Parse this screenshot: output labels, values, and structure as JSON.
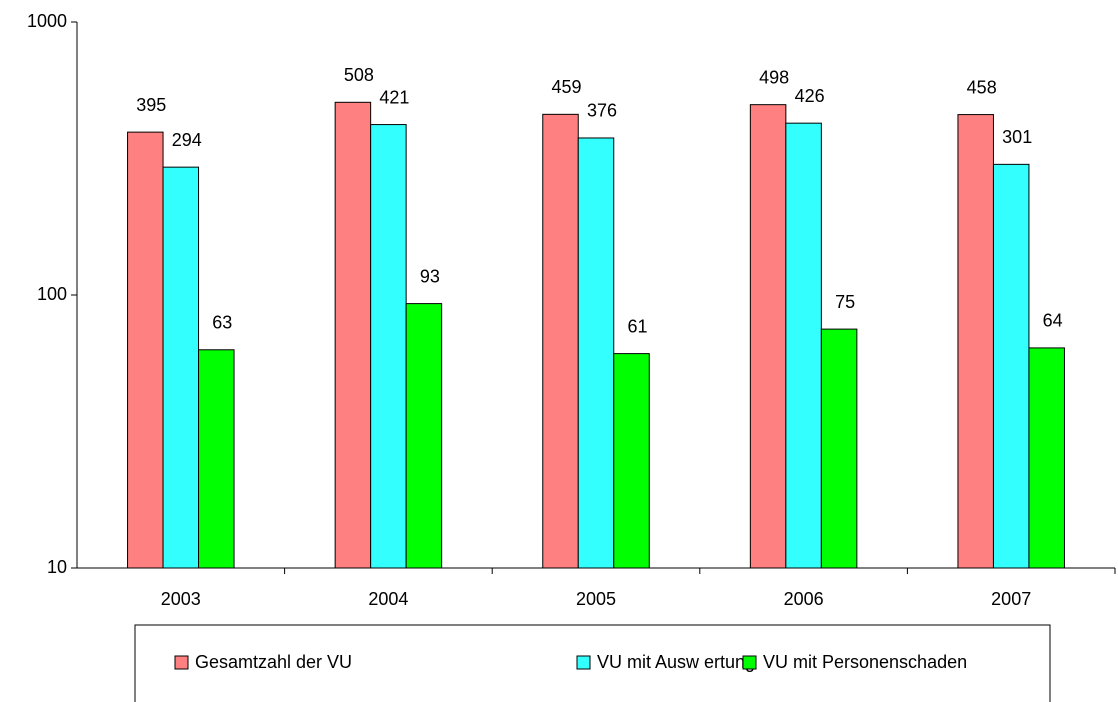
{
  "chart_data": {
    "type": "bar",
    "categories": [
      "2003",
      "2004",
      "2005",
      "2006",
      "2007"
    ],
    "series": [
      {
        "name": "Gesamtzahl der VU",
        "color": "#ff8080",
        "values": [
          395,
          508,
          459,
          498,
          458
        ]
      },
      {
        "name": "VU mit Ausw ertung",
        "color": "#33ffff",
        "values": [
          294,
          421,
          376,
          426,
          301
        ]
      },
      {
        "name": "VU mit Personenschaden",
        "color": "#00ff00",
        "values": [
          63,
          93,
          61,
          75,
          64
        ]
      }
    ],
    "ylim": [
      10,
      1000
    ],
    "yticks": [
      10,
      100,
      1000
    ],
    "log_scale": true,
    "grid": false,
    "legend": "bottom"
  }
}
